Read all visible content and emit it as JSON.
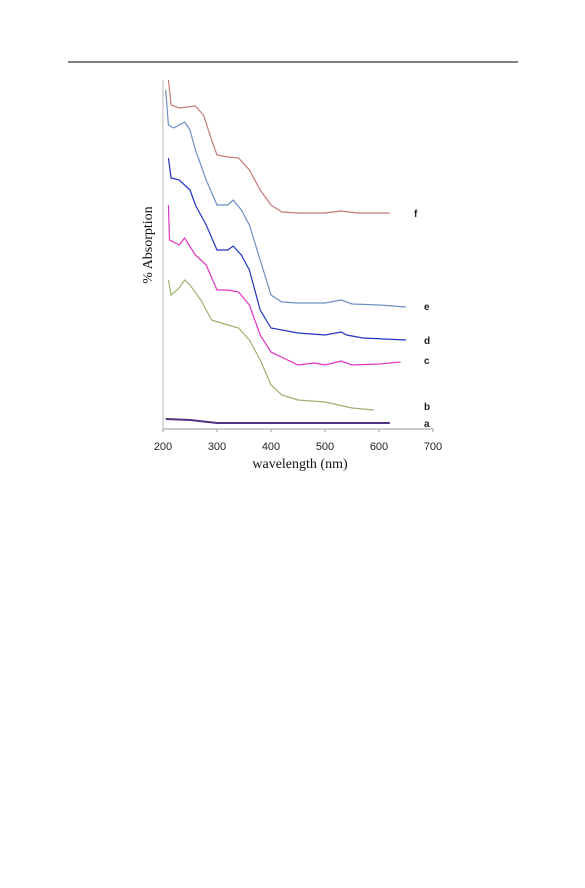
{
  "chart_data": {
    "type": "line",
    "xlabel": "wavelength (nm)",
    "ylabel": "% Absorption",
    "xlim": [
      200,
      700
    ],
    "xticks": [
      200,
      300,
      400,
      500,
      600,
      700
    ],
    "ylim": [
      0,
      350
    ],
    "series": [
      {
        "name": "f",
        "color": "#c47a78",
        "x": [
          210,
          215,
          230,
          260,
          275,
          290,
          300,
          320,
          340,
          360,
          380,
          400,
          420,
          450,
          500,
          530,
          560,
          590,
          620
        ],
        "values": [
          349,
          324,
          321,
          323,
          314,
          289,
          274,
          272,
          271,
          259,
          239,
          224,
          217,
          216,
          216,
          218,
          216,
          216,
          216
        ]
      },
      {
        "name": "e",
        "color": "#6b90c2",
        "x": [
          205,
          210,
          220,
          240,
          250,
          260,
          280,
          300,
          320,
          330,
          345,
          360,
          380,
          400,
          420,
          450,
          500,
          530,
          550,
          600,
          650
        ],
        "values": [
          339,
          304,
          301,
          307,
          299,
          279,
          249,
          224,
          224,
          229,
          219,
          204,
          169,
          134,
          127,
          126,
          126,
          129,
          125,
          124,
          122
        ]
      },
      {
        "name": "d",
        "color": "#2233c0",
        "x": [
          210,
          215,
          230,
          250,
          260,
          280,
          300,
          320,
          330,
          345,
          360,
          380,
          400,
          450,
          500,
          530,
          540,
          570,
          650
        ],
        "values": [
          271,
          251,
          249,
          239,
          224,
          204,
          179,
          179,
          183,
          174,
          159,
          119,
          101,
          96,
          94,
          97,
          94,
          91,
          89
        ]
      },
      {
        "name": "c",
        "color": "#e033c2",
        "x": [
          210,
          212,
          230,
          240,
          260,
          280,
          300,
          320,
          340,
          360,
          380,
          400,
          450,
          480,
          500,
          530,
          550,
          600,
          640
        ],
        "values": [
          224,
          189,
          184,
          191,
          174,
          164,
          139,
          139,
          137,
          124,
          94,
          77,
          64,
          66,
          64,
          68,
          64,
          65,
          67
        ]
      },
      {
        "name": "b",
        "color": "#9db274",
        "x": [
          210,
          215,
          230,
          240,
          250,
          270,
          290,
          320,
          340,
          360,
          380,
          400,
          420,
          450,
          500,
          550,
          590
        ],
        "values": [
          149,
          134,
          141,
          149,
          144,
          129,
          109,
          104,
          101,
          89,
          69,
          44,
          34,
          29,
          27,
          21,
          19
        ]
      },
      {
        "name": "a",
        "color": "#4e3282",
        "x": [
          205,
          250,
          300,
          350,
          400,
          450,
          500,
          550,
          600,
          620
        ],
        "values": [
          10,
          9,
          6,
          6,
          6,
          6,
          6,
          6,
          6,
          6
        ]
      }
    ]
  }
}
